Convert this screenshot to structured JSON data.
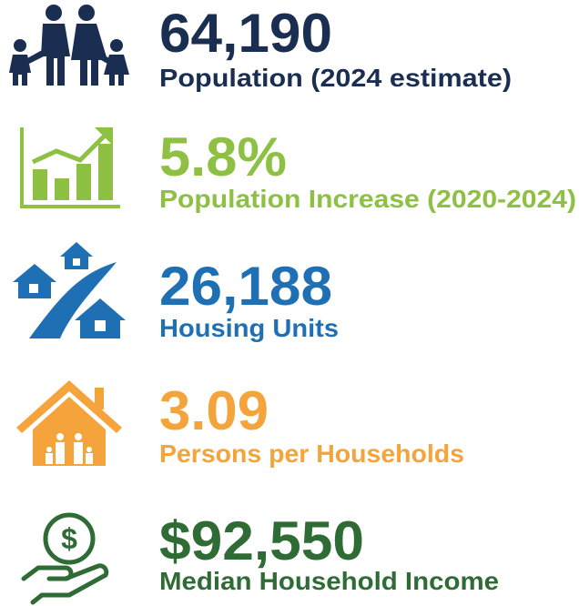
{
  "stats": [
    {
      "value": "64,190",
      "label": "Population (2024 estimate)"
    },
    {
      "value": "5.8%",
      "label": "Population Increase (2020-2024)"
    },
    {
      "value": "26,188",
      "label": "Housing Units"
    },
    {
      "value": "3.09",
      "label": "Persons per Households"
    },
    {
      "value": "$92,550",
      "label": "Median Household Income"
    }
  ]
}
